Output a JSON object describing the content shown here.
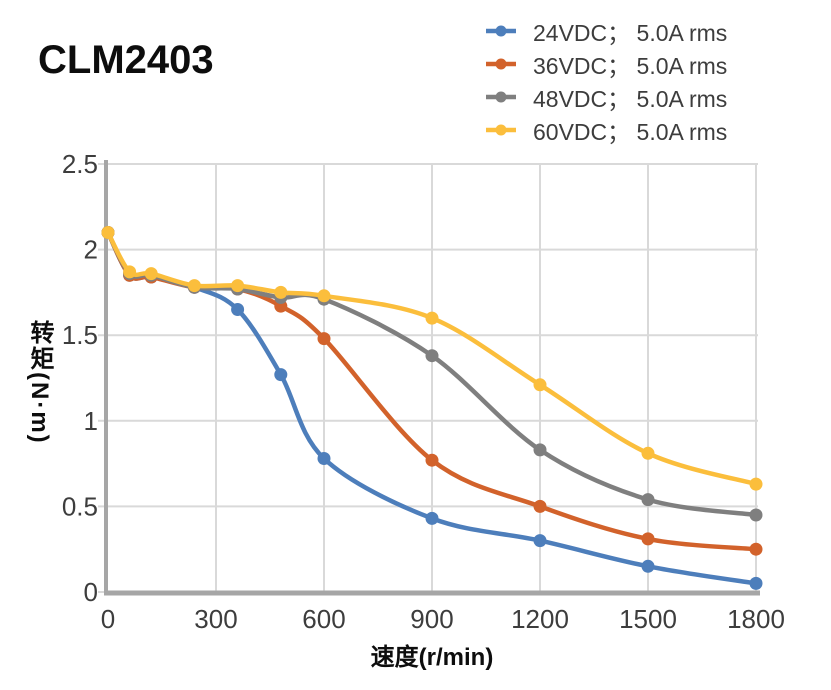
{
  "title": "CLM2403",
  "chart_data": {
    "type": "line",
    "title": "CLM2403",
    "xlabel": "速度(r/min)",
    "ylabel": "转矩(N·m)",
    "xlim": [
      0,
      1800
    ],
    "ylim": [
      0,
      2.5
    ],
    "x_ticks": [
      0,
      300,
      600,
      900,
      1200,
      1500,
      1800
    ],
    "x_tick_labels": [
      "0",
      "300",
      "600",
      "900",
      "1200",
      "1500",
      "1800"
    ],
    "y_ticks": [
      0,
      0.5,
      1,
      1.5,
      2,
      2.5
    ],
    "y_tick_labels": [
      "0",
      "0.5",
      "1",
      "1.5",
      "2",
      "2.5"
    ],
    "grid": true,
    "legend_position": "top-right",
    "x": [
      0,
      60,
      120,
      240,
      360,
      480,
      600,
      900,
      1200,
      1500,
      1800
    ],
    "series": [
      {
        "name": "24VDC；  5.0A rms",
        "color": "#4D7EBB",
        "values": [
          2.1,
          1.85,
          1.84,
          1.78,
          1.65,
          1.27,
          0.78,
          0.43,
          0.3,
          0.15,
          0.05
        ]
      },
      {
        "name": "36VDC；  5.0A rms",
        "color": "#D2622B",
        "values": [
          2.1,
          1.85,
          1.84,
          1.78,
          1.77,
          1.67,
          1.48,
          0.77,
          0.5,
          0.31,
          0.25
        ]
      },
      {
        "name": "48VDC；  5.0A rms",
        "color": "#7F7F7F",
        "values": [
          2.1,
          1.86,
          1.85,
          1.78,
          1.77,
          1.72,
          1.71,
          1.38,
          0.83,
          0.54,
          0.45
        ]
      },
      {
        "name": "60VDC；  5.0A rms",
        "color": "#FBBE3C",
        "values": [
          2.1,
          1.87,
          1.86,
          1.79,
          1.79,
          1.75,
          1.73,
          1.6,
          1.21,
          0.81,
          0.63
        ]
      }
    ],
    "colors": {
      "grid": "#D9D9D9",
      "axis": "#A6A6A6",
      "tick_text": "#3D3D3D"
    }
  }
}
